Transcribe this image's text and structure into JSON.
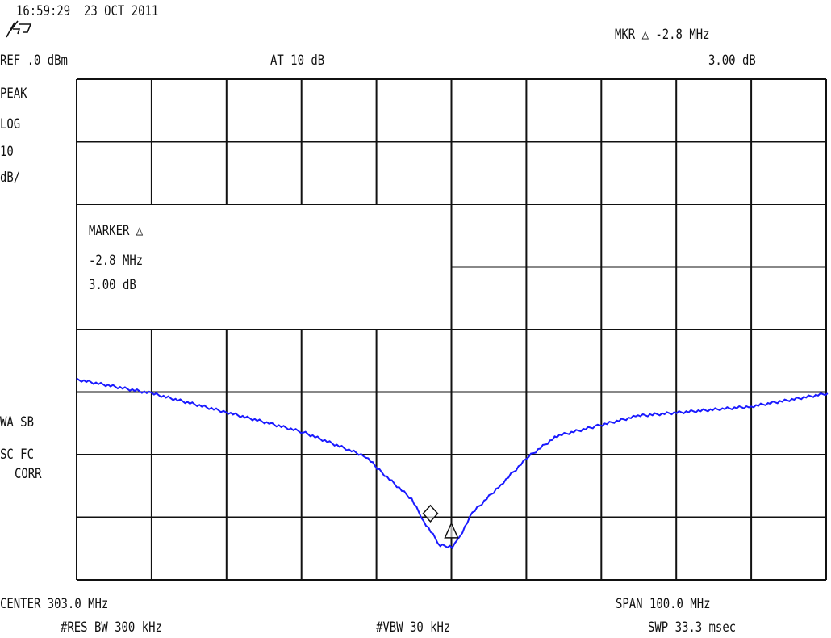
{
  "header": {
    "timestamp": "16:59:29  23 OCT 2011",
    "logo": "hp",
    "ref_level": "REF .0 dBm",
    "attenuation": "AT 10 dB",
    "marker_readout": "MKR △ -2.8 MHz",
    "marker_amplitude": "3.00 dB"
  },
  "left_annotations": {
    "detector": "PEAK",
    "scale_type": "LOG",
    "scale_value": "10",
    "scale_unit": "dB/",
    "flags_1": "WA SB",
    "flags_2": "SC FC",
    "flags_3": "CORR"
  },
  "marker_box": {
    "title": "MARKER △",
    "delta_freq": "-2.8 MHz",
    "delta_amp": "3.00 dB"
  },
  "footer": {
    "center": "CENTER 303.0 MHz",
    "span": "SPAN 100.0 MHz",
    "rbw": "#RES BW 300 kHz",
    "vbw": "#VBW 30 kHz",
    "sweep": "SWP 33.3 msec"
  },
  "colors": {
    "trace": "#1a1aff",
    "grid": "#111111",
    "background": "#ffffff"
  },
  "chart_data": {
    "type": "line",
    "title": "",
    "xlabel": "",
    "ylabel": "",
    "xlim": [
      253,
      353
    ],
    "ylim": [
      -80,
      0
    ],
    "x_divisions": 10,
    "y_divisions": 8,
    "grid": true,
    "x_unit": "MHz",
    "y_unit": "dBm",
    "series": [
      {
        "x": [
          253,
          263,
          272.9,
          283.2,
          291.6,
          293.4,
          297.7,
          299.3,
          301.5,
          303.1,
          303.8,
          305.8,
          309.6,
          313.3,
          317.1,
          322.5,
          327.9,
          343.0,
          353.2
        ],
        "y": [
          -48.0,
          -50.2,
          -53.2,
          -56.4,
          -60.3,
          -62.5,
          -67.1,
          -70.6,
          -74.5,
          -74.7,
          -73.8,
          -69.3,
          -64.8,
          -60.3,
          -57.0,
          -55.4,
          -53.8,
          -52.3,
          -50.2
        ]
      }
    ],
    "markers": [
      {
        "type": "active",
        "x": 300.2,
        "y": -69.4
      },
      {
        "type": "reference",
        "x": 303.0,
        "y": -72.5
      }
    ]
  }
}
